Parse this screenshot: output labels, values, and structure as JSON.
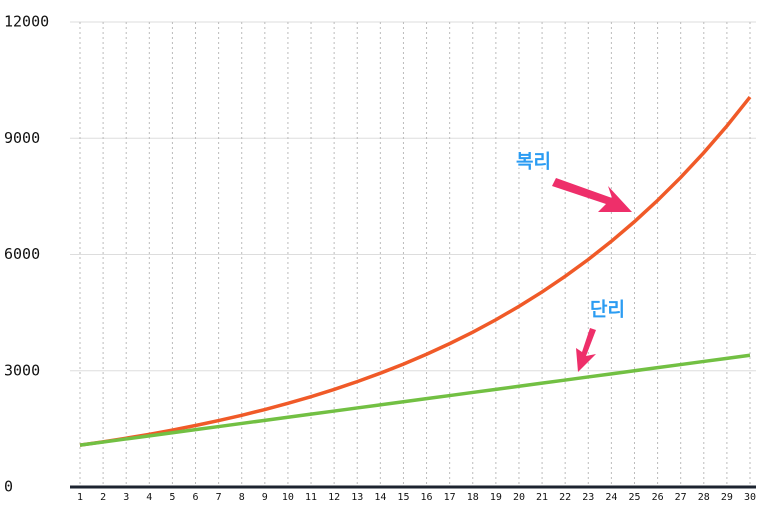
{
  "chart_data": {
    "type": "line",
    "categories": [
      "1",
      "2",
      "3",
      "4",
      "5",
      "6",
      "7",
      "8",
      "9",
      "10",
      "11",
      "12",
      "13",
      "14",
      "15",
      "16",
      "17",
      "18",
      "19",
      "20",
      "21",
      "22",
      "23",
      "24",
      "25",
      "26",
      "27",
      "28",
      "29",
      "30"
    ],
    "series": [
      {
        "name": "복리",
        "color": "#f05a28",
        "values": [
          1080,
          1166,
          1260,
          1360,
          1469,
          1587,
          1714,
          1851,
          1999,
          2159,
          2332,
          2518,
          2720,
          2937,
          3172,
          3426,
          3700,
          3996,
          4316,
          4661,
          5034,
          5437,
          5871,
          6341,
          6848,
          7396,
          7988,
          8627,
          9317,
          10063
        ]
      },
      {
        "name": "단리",
        "color": "#72c043",
        "values": [
          1080,
          1160,
          1240,
          1320,
          1400,
          1480,
          1560,
          1640,
          1720,
          1800,
          1880,
          1960,
          2040,
          2120,
          2200,
          2280,
          2360,
          2440,
          2520,
          2600,
          2680,
          2760,
          2840,
          2920,
          3000,
          3080,
          3160,
          3240,
          3320,
          3400
        ]
      }
    ],
    "ylim": [
      0,
      12000
    ],
    "yticks": [
      0,
      3000,
      6000,
      9000,
      12000
    ],
    "grid": true
  }
}
